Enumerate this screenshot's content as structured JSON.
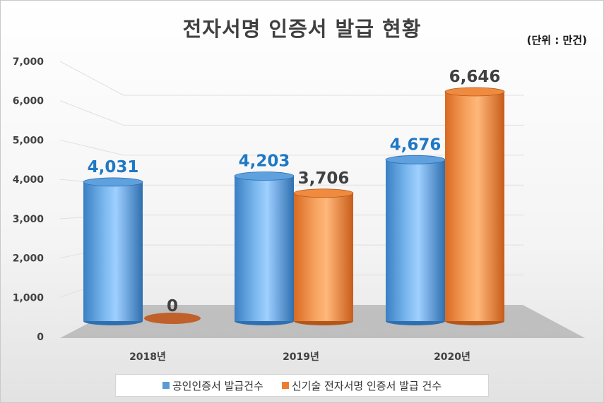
{
  "chart_data": {
    "type": "bar",
    "title": "전자서명 인증서 발급 현황",
    "unit_label": "(단위 : 만건)",
    "categories": [
      "2018년",
      "2019년",
      "2020년"
    ],
    "series": [
      {
        "name": "공인인증서 발급건수",
        "values": [
          4031,
          4203,
          4676
        ],
        "color": "#5b9bd5",
        "label_color": "#1f78c4"
      },
      {
        "name": "신기술 전자서명 인증서 발급 건수",
        "values": [
          0,
          3706,
          6646
        ],
        "color": "#ed7d31",
        "label_color": "#404040"
      }
    ],
    "value_labels": [
      [
        "4,031",
        "4,203",
        "4,676"
      ],
      [
        "0",
        "3,706",
        "6,646"
      ]
    ],
    "ylim": [
      0,
      7000
    ],
    "yticks": [
      "0",
      "1,000",
      "2,000",
      "3,000",
      "4,000",
      "5,000",
      "6,000",
      "7,000"
    ],
    "legend_position": "bottom",
    "grid": true,
    "style": "3d-cylinder"
  }
}
